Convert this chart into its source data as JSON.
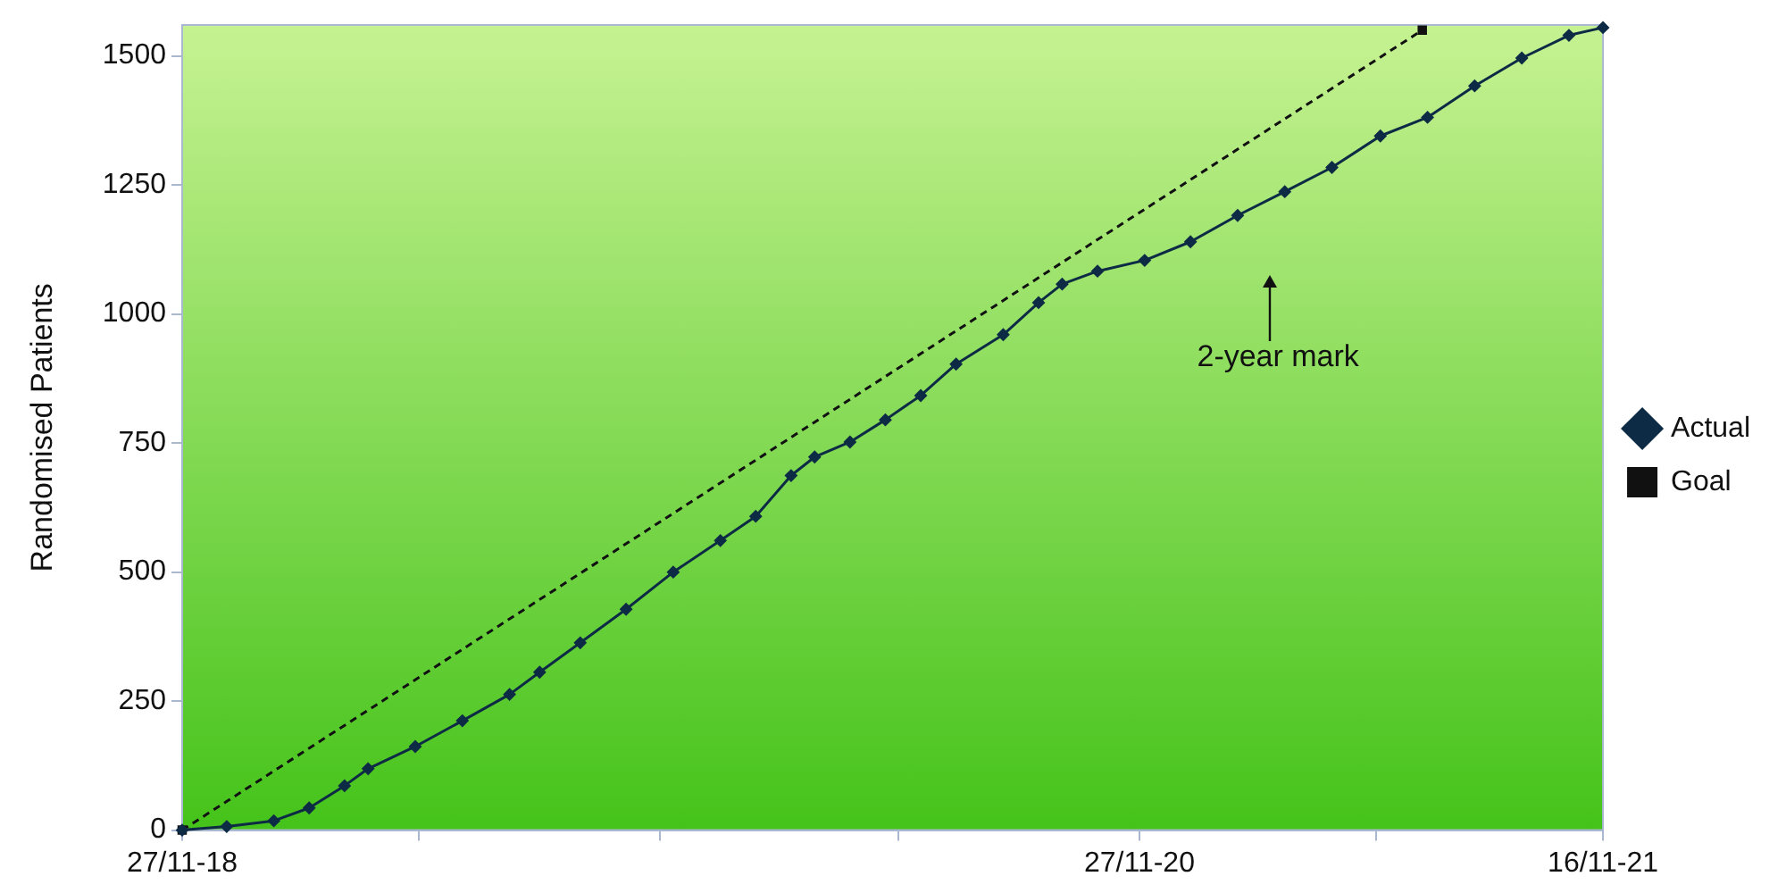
{
  "chart_data": {
    "type": "line",
    "ylabel": "Randomised Patients",
    "xlim": [
      "2018-11-27",
      "2021-11-16"
    ],
    "xticks": [
      {
        "value": "2018-11-27",
        "label": "27/11-18"
      },
      {
        "value": "2019-05-27",
        "label": null
      },
      {
        "value": "2019-11-27",
        "label": null
      },
      {
        "value": "2020-05-27",
        "label": null
      },
      {
        "value": "2020-11-27",
        "label": "27/11-20"
      },
      {
        "value": "2021-05-27",
        "label": null
      },
      {
        "value": "2021-11-16",
        "label": "16/11-21"
      }
    ],
    "ylim": [
      0,
      1560
    ],
    "yticks": [
      0,
      250,
      500,
      750,
      1000,
      1250,
      1500
    ],
    "grid": false,
    "legend": "right",
    "annotations": [
      "2-year mark"
    ],
    "series": [
      {
        "name": "Actual",
        "color": "#0d2b45",
        "marker": "diamond",
        "line_style": "solid",
        "x": [
          "2018-11-27",
          "2018-12-31",
          "2019-02-05",
          "2019-03-04",
          "2019-03-31",
          "2019-04-18",
          "2019-05-24",
          "2019-06-29",
          "2019-08-04",
          "2019-08-27",
          "2019-09-27",
          "2019-11-01",
          "2019-12-07",
          "2020-01-12",
          "2020-02-08",
          "2020-03-06",
          "2020-03-24",
          "2020-04-20",
          "2020-05-17",
          "2020-06-13",
          "2020-07-10",
          "2020-08-15",
          "2020-09-11",
          "2020-09-29",
          "2020-10-26",
          "2020-12-01",
          "2021-01-05",
          "2021-02-10",
          "2021-03-18",
          "2021-04-23",
          "2021-05-30",
          "2021-07-05",
          "2021-08-10",
          "2021-09-15",
          "2021-10-21",
          "2021-11-16"
        ],
        "values": [
          0,
          7,
          18,
          43,
          86,
          119,
          162,
          212,
          263,
          306,
          363,
          428,
          500,
          561,
          608,
          687,
          723,
          752,
          795,
          842,
          903,
          960,
          1022,
          1058,
          1083,
          1104,
          1140,
          1191,
          1237,
          1284,
          1345,
          1381,
          1442,
          1496,
          1540,
          1555
        ]
      },
      {
        "name": "Goal",
        "color": "#111111",
        "marker": "square",
        "line_style": "dashed",
        "x": [
          "2018-11-27",
          "2021-07-01"
        ],
        "values": [
          0,
          1550
        ]
      }
    ]
  }
}
